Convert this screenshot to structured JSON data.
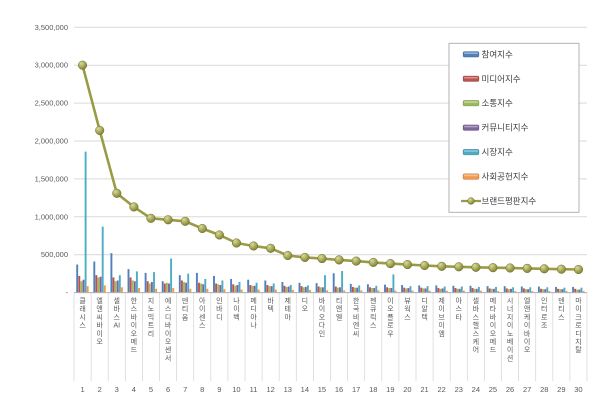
{
  "page": {
    "background": "#ffffff"
  },
  "chart_data": {
    "type": "combo: bar + line",
    "title": "",
    "categories": [
      "클래시스",
      "엘앤씨바이오",
      "셀바스AI",
      "한스바이오메드",
      "지노믹트리",
      "에스디바이오센서",
      "덴티움",
      "아이센스",
      "인바디",
      "나이벡",
      "메디아나",
      "바텍",
      "제테마",
      "디오",
      "바이오다인",
      "티앤엘",
      "한국비엔씨",
      "젠큐릭스",
      "이오플로우",
      "뷰웍스",
      "디알텍",
      "제이브이엠",
      "아스타",
      "셀바스헬스케어",
      "메타바이오메드",
      "시너지이노베이션",
      "엘앤케이바이오",
      "인터로조",
      "덴티스",
      "마이크로디지탈"
    ],
    "ranks": [
      1,
      2,
      3,
      4,
      5,
      6,
      7,
      8,
      9,
      10,
      11,
      12,
      13,
      14,
      15,
      16,
      17,
      18,
      19,
      20,
      21,
      22,
      23,
      24,
      25,
      26,
      27,
      28,
      29,
      30
    ],
    "series": [
      {
        "name": "참여지수",
        "type": "bar",
        "color": "#4f81bd",
        "values": [
          370000,
          410000,
          520000,
          310000,
          260000,
          150000,
          230000,
          260000,
          220000,
          180000,
          170000,
          160000,
          140000,
          130000,
          125000,
          255000,
          115000,
          110000,
          105000,
          100000,
          95000,
          95000,
          90000,
          90000,
          85000,
          85000,
          80000,
          80000,
          75000,
          75000
        ]
      },
      {
        "name": "미디어지수",
        "type": "bar",
        "color": "#c0504d",
        "values": [
          220000,
          230000,
          200000,
          200000,
          150000,
          120000,
          160000,
          130000,
          120000,
          110000,
          100000,
          100000,
          90000,
          85000,
          80000,
          80000,
          75000,
          70000,
          70000,
          65000,
          65000,
          60000,
          60000,
          60000,
          55000,
          55000,
          55000,
          50000,
          50000,
          50000
        ]
      },
      {
        "name": "소통지수",
        "type": "bar",
        "color": "#9bbb59",
        "values": [
          150000,
          200000,
          150000,
          160000,
          120000,
          130000,
          140000,
          120000,
          110000,
          90000,
          90000,
          85000,
          75000,
          70000,
          70000,
          65000,
          65000,
          60000,
          60000,
          55000,
          55000,
          50000,
          50000,
          50000,
          50000,
          45000,
          45000,
          45000,
          45000,
          40000
        ]
      },
      {
        "name": "커뮤니티지수",
        "type": "bar",
        "color": "#8064a2",
        "values": [
          170000,
          210000,
          160000,
          150000,
          140000,
          120000,
          130000,
          110000,
          100000,
          100000,
          90000,
          85000,
          80000,
          75000,
          70000,
          70000,
          65000,
          60000,
          60000,
          60000,
          55000,
          55000,
          50000,
          50000,
          50000,
          50000,
          45000,
          45000,
          45000,
          40000
        ]
      },
      {
        "name": "시장지수",
        "type": "bar",
        "color": "#4bacc6",
        "values": [
          1860000,
          870000,
          230000,
          280000,
          270000,
          450000,
          250000,
          180000,
          160000,
          140000,
          130000,
          120000,
          100000,
          95000,
          230000,
          285000,
          95000,
          90000,
          240000,
          85000,
          85000,
          80000,
          80000,
          75000,
          75000,
          70000,
          70000,
          70000,
          65000,
          65000
        ]
      },
      {
        "name": "사회공헌지수",
        "type": "bar",
        "color": "#f79646",
        "values": [
          85000,
          95000,
          70000,
          60000,
          50000,
          60000,
          50000,
          50000,
          45000,
          40000,
          40000,
          40000,
          35000,
          35000,
          30000,
          30000,
          30000,
          30000,
          25000,
          25000,
          25000,
          25000,
          25000,
          25000,
          20000,
          20000,
          20000,
          20000,
          20000,
          20000
        ]
      },
      {
        "name": "브랜드평판지수",
        "type": "line",
        "color": "#9a9b44",
        "marker_color": "#a4a552",
        "values": [
          3000000,
          2140000,
          1310000,
          1130000,
          980000,
          960000,
          940000,
          845000,
          760000,
          655000,
          615000,
          585000,
          490000,
          465000,
          448000,
          432000,
          415000,
          398000,
          383000,
          370000,
          357000,
          347000,
          340000,
          334000,
          329000,
          324000,
          319000,
          314000,
          309000,
          305000
        ]
      }
    ],
    "y_axis": {
      "min": 0,
      "max": 3500000,
      "step": 500000,
      "tick_labels": [
        "-",
        "500,000",
        "1,000,000",
        "1,500,000",
        "2,000,000",
        "2,500,000",
        "3,000,000",
        "3,500,000"
      ]
    },
    "legend": {
      "position": "upper-right"
    },
    "grid": true,
    "style": {
      "grid_color": "#d9d9d9",
      "axis_line_color": "#b3b3b3",
      "axis_text_color": "#595959",
      "legend_border_color": "#ababab",
      "legend_text_color": "#3f3f3f"
    }
  }
}
